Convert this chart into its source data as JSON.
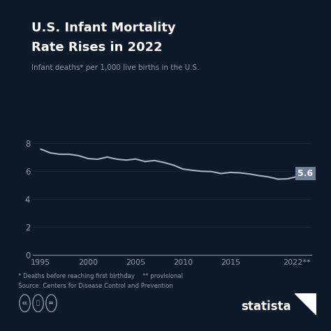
{
  "title_line1": "U.S. Infant Mortality",
  "title_line2": "Rate Rises in 2022",
  "subtitle": "Infant deaths* per 1,000 live births in the U.S.",
  "footnote1": "* Deaths before reaching first birthday    ** provisional",
  "footnote2": "Source: Centers for Disease Control and Prevention",
  "watermark": "statista",
  "bg_color": "#0b1929",
  "line_color": "#aab4c4",
  "label_bg_color": "#6e8196",
  "label_text_color": "#ffffff",
  "title_color": "#ffffff",
  "subtitle_color": "#8899aa",
  "tick_color": "#8899aa",
  "grid_color": "#162236",
  "annotation_value": "5.6",
  "accent_bar_color": "#6a7f96",
  "years": [
    1995,
    1996,
    1997,
    1998,
    1999,
    2000,
    2001,
    2002,
    2003,
    2004,
    2005,
    2006,
    2007,
    2008,
    2009,
    2010,
    2011,
    2012,
    2013,
    2014,
    2015,
    2016,
    2017,
    2018,
    2019,
    2020,
    2021,
    2022
  ],
  "values": [
    7.57,
    7.3,
    7.2,
    7.2,
    7.1,
    6.89,
    6.84,
    7.0,
    6.85,
    6.78,
    6.86,
    6.68,
    6.75,
    6.61,
    6.42,
    6.14,
    6.05,
    5.98,
    5.96,
    5.82,
    5.9,
    5.87,
    5.79,
    5.67,
    5.58,
    5.42,
    5.44,
    5.6
  ],
  "ylim": [
    0,
    9
  ],
  "xlim": [
    1994.2,
    2023.5
  ],
  "yticks": [
    0,
    2,
    4,
    6,
    8
  ],
  "xtick_years": [
    1995,
    2000,
    2005,
    2010,
    2015
  ],
  "last_xtick_label": "2022**"
}
